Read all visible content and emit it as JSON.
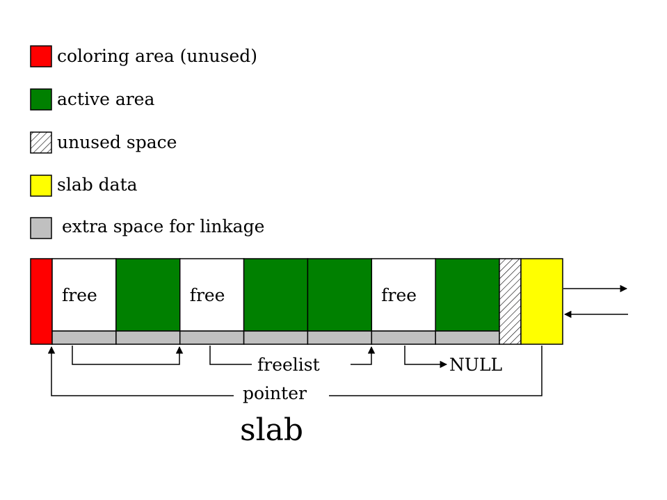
{
  "legend": [
    {
      "label": "coloring area (unused)",
      "color": "#ff0000",
      "pattern": "solid"
    },
    {
      "label": "active area",
      "color": "#008000",
      "pattern": "solid"
    },
    {
      "label": "unused space",
      "color": "#ffffff",
      "pattern": "hatch"
    },
    {
      "label": "slab data",
      "color": "#ffff00",
      "pattern": "solid"
    },
    {
      "label": "extra space for linkage",
      "color": "#c0c0c0",
      "pattern": "solid"
    }
  ],
  "slab": {
    "objects": [
      {
        "state": "free",
        "label": "free"
      },
      {
        "state": "active",
        "label": ""
      },
      {
        "state": "free",
        "label": "free"
      },
      {
        "state": "active",
        "label": ""
      },
      {
        "state": "active",
        "label": ""
      },
      {
        "state": "free",
        "label": "free"
      },
      {
        "state": "active",
        "label": ""
      }
    ],
    "colors": {
      "coloring": "#ff0000",
      "active": "#008000",
      "free": "#ffffff",
      "linkage": "#c0c0c0",
      "slab_data": "#ffff00"
    }
  },
  "labels": {
    "freelist": "freelist",
    "null": "NULL",
    "pointer": "pointer",
    "title": "slab"
  }
}
